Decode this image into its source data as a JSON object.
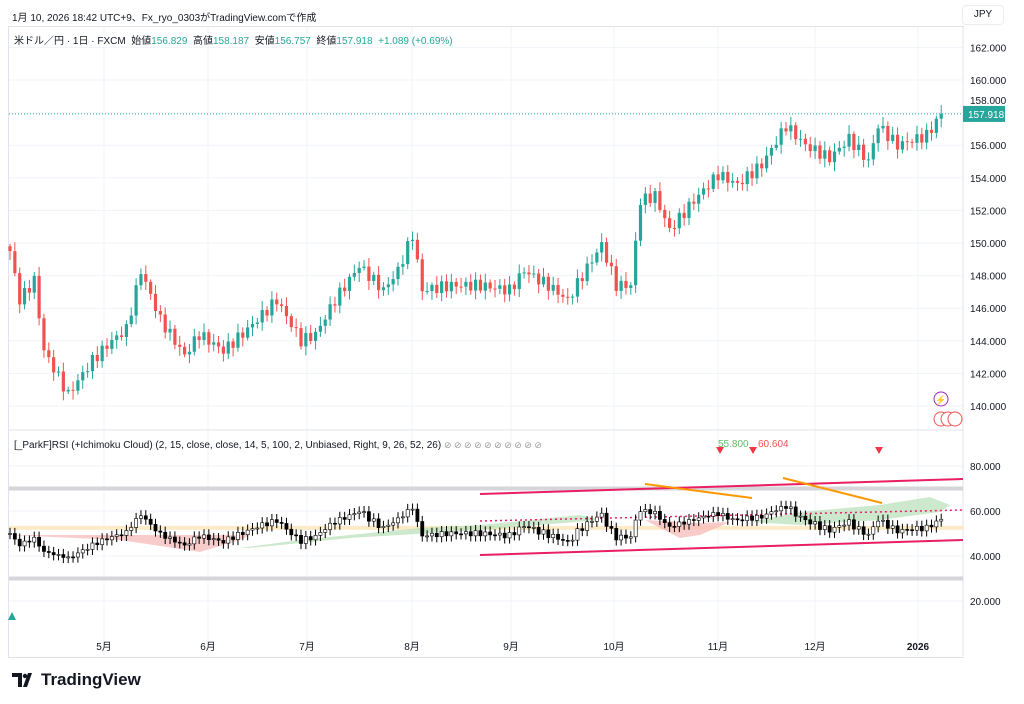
{
  "caption": "1月 10, 2026 18:42 UTC+9、Fx_ryo_0303がTradingView.comで作成",
  "legend": {
    "symbol": "米ドル／円 · 1日 · FXCM",
    "open_label": "始値",
    "open": "156.829",
    "high_label": "高値",
    "high": "158.187",
    "low_label": "安値",
    "low": "156.757",
    "close_label": "終値",
    "close": "157.918",
    "change": "+1.089 (+0.69%)"
  },
  "currency": "JPY",
  "last_price": "157.918",
  "colors": {
    "up": "#26a69a",
    "down": "#ef5350",
    "channel": "#e91e63",
    "trend": "#ff9800"
  },
  "rsi_legend": "[_ParkF]RSI (+Ichimoku Cloud) (2, 15, close, close, 14, 5, 100, 2, Unbiased, Right, 9, 26, 52, 26)",
  "rsi_legend_icons": "⊘ ⊘ ⊘ ⊘ ⊘ ⊘ ⊘ ⊘ ⊘ ⊘",
  "rsi_labels": {
    "green": "55.800",
    "red": "60.604"
  },
  "brand": "TradingView",
  "chart_data": [
    {
      "type": "candlestick",
      "title": "米ドル／円 · 1日 · FXCM",
      "ylim": [
        139,
        163
      ],
      "yticks": [
        "140.000",
        "142.000",
        "144.000",
        "146.000",
        "148.000",
        "150.000",
        "152.000",
        "154.000",
        "156.000",
        "158.000",
        "160.000",
        "162.000"
      ],
      "xticks": [
        "5月",
        "6月",
        "7月",
        "8月",
        "9月",
        "10月",
        "11月",
        "12月",
        "2026"
      ],
      "close_keypoints_by_day": [
        [
          0,
          149.5
        ],
        [
          2,
          146.5
        ],
        [
          5,
          147.7
        ],
        [
          7,
          143.4
        ],
        [
          12,
          140.7
        ],
        [
          17,
          142.8
        ],
        [
          21,
          144
        ],
        [
          24,
          144.7
        ],
        [
          27,
          148.3
        ],
        [
          31,
          145.3
        ],
        [
          36,
          143.1
        ],
        [
          39,
          144.4
        ],
        [
          44,
          143.4
        ],
        [
          49,
          144.7
        ],
        [
          55,
          146.5
        ],
        [
          60,
          144
        ],
        [
          63,
          144.4
        ],
        [
          67,
          146.5
        ],
        [
          72,
          148.6
        ],
        [
          77,
          147.1
        ],
        [
          80,
          148.3
        ],
        [
          83,
          150.5
        ],
        [
          85,
          147.1
        ],
        [
          91,
          147.4
        ],
        [
          97,
          147.4
        ],
        [
          103,
          147.1
        ],
        [
          106,
          148.3
        ],
        [
          111,
          147.4
        ],
        [
          115,
          146.5
        ],
        [
          118,
          148
        ],
        [
          122,
          149.9
        ],
        [
          125,
          147.4
        ],
        [
          128,
          147.4
        ],
        [
          130,
          152.6
        ],
        [
          133,
          152.9
        ],
        [
          136,
          150.8
        ],
        [
          141,
          152.6
        ],
        [
          146,
          154.2
        ],
        [
          150,
          153.6
        ],
        [
          155,
          154.8
        ],
        [
          160,
          157.2
        ],
        [
          164,
          156
        ],
        [
          169,
          155.2
        ],
        [
          173,
          156.4
        ],
        [
          177,
          155
        ],
        [
          179,
          157.2
        ],
        [
          183,
          156
        ],
        [
          189,
          156.6
        ],
        [
          192,
          157.9
        ]
      ]
    },
    {
      "type": "candlestick",
      "title": "RSI (+Ichimoku Cloud)",
      "ylim": [
        10,
        90
      ],
      "yticks": [
        "20.000",
        "40.000",
        "60.000",
        "80.000"
      ],
      "levels": [
        70,
        30
      ]
    }
  ]
}
